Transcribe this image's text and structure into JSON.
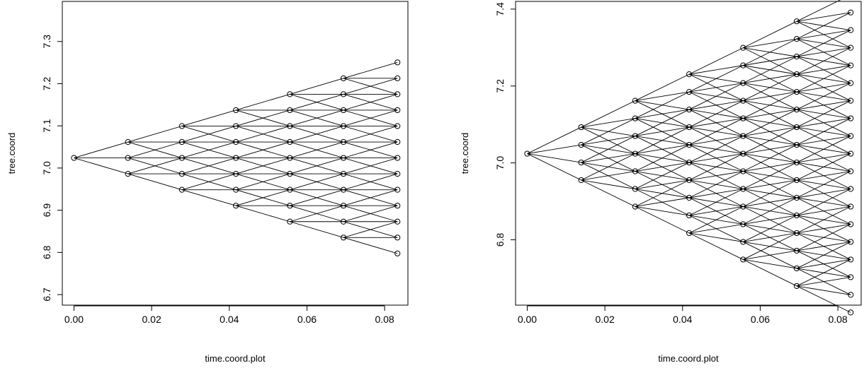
{
  "chart_data": [
    {
      "type": "scatter",
      "title": "",
      "xlabel": "time.coord.plot",
      "ylabel": "tree.coord",
      "xlim": [
        -0.003,
        0.086
      ],
      "ylim": [
        6.675,
        7.395
      ],
      "x_ticks": [
        0.0,
        0.02,
        0.04,
        0.06,
        0.08
      ],
      "x_tick_labels": [
        "0.00",
        "0.02",
        "0.04",
        "0.06",
        "0.08"
      ],
      "y_ticks": [
        6.7,
        6.8,
        6.9,
        7.0,
        7.1,
        7.2,
        7.3
      ],
      "y_tick_labels": [
        "6.7",
        "6.8",
        "6.9",
        "7.0",
        "7.1",
        "7.2",
        "7.3"
      ],
      "time_steps": [
        0.0,
        0.0139,
        0.0278,
        0.0417,
        0.0556,
        0.0694,
        0.0833
      ],
      "start_value": 7.024,
      "step": 0.03775,
      "branches": 3,
      "grid": false,
      "legend": "none"
    },
    {
      "type": "scatter",
      "title": "",
      "xlabel": "time.coord.plot",
      "ylabel": "tree.coord",
      "xlim": [
        -0.003,
        0.086
      ],
      "ylim": [
        6.63,
        7.42
      ],
      "x_ticks": [
        0.0,
        0.02,
        0.04,
        0.06,
        0.08
      ],
      "x_tick_labels": [
        "0.00",
        "0.02",
        "0.04",
        "0.06",
        "0.08"
      ],
      "y_ticks": [
        6.8,
        7.0,
        7.2,
        7.4
      ],
      "y_tick_labels": [
        "6.8",
        "7.0",
        "7.2",
        "7.4"
      ],
      "time_steps": [
        0.0,
        0.0139,
        0.0278,
        0.0417,
        0.0556,
        0.0694,
        0.0833
      ],
      "start_value": 7.024,
      "step": 0.0459,
      "branches": 4,
      "grid": false,
      "legend": "none"
    }
  ]
}
